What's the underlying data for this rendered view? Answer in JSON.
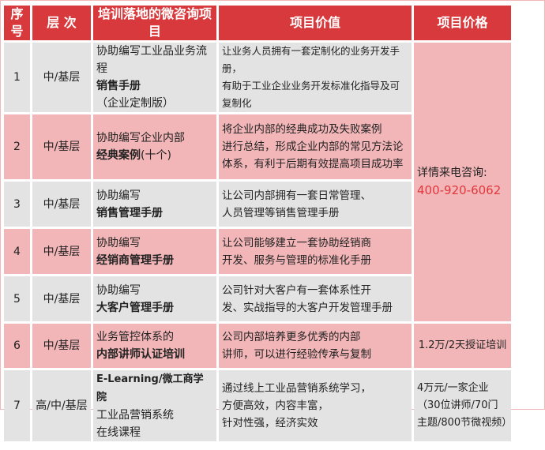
{
  "headers": [
    "序号",
    "层 次",
    "培训落地的微咨询项目",
    "项目价值",
    "项目价格"
  ],
  "rows": [
    {
      "no": "1",
      "level": "中/基层",
      "project_plain": "协助编写工业品业务流程",
      "project_bold": "销售手册",
      "project_tail": "（企业定制版）",
      "value": [
        "让业务人员拥有一套定制化的业务开发手册，",
        "有助于工业企业业务开发标准化指导及可复制化"
      ]
    },
    {
      "no": "2",
      "level": "中/基层",
      "project_plain": "协助编写企业内部",
      "project_bold": "经典案例",
      "project_tail": "(十个)",
      "value": [
        "将企业内部的经典成功及失败案例",
        "进行总结，形成企业内部的常见方法论",
        "体系，有利于后期有效提高项目成功率"
      ]
    },
    {
      "no": "3",
      "level": "中/基层",
      "project_plain": "协助编写",
      "project_bold": "销售管理手册",
      "project_tail": "",
      "value": [
        "让公司内部拥有一套日常管理、",
        "人员管理等销售管理手册"
      ]
    },
    {
      "no": "4",
      "level": "中/基层",
      "project_plain": "协助编写",
      "project_bold": "经销商管理手册",
      "project_tail": "",
      "value": [
        "让公司能够建立一套协助经销商",
        "开发、服务与管理的标准化手册"
      ]
    },
    {
      "no": "5",
      "level": "中/基层",
      "project_plain": "协助编写",
      "project_bold": "大客户管理手册",
      "project_tail": "",
      "value": [
        "公司针对大客户有一套体系性开",
        "发、实战指导的大客户开发管理手册"
      ]
    },
    {
      "no": "6",
      "level": "中/基层",
      "project_plain": "业务管控体系的",
      "project_bold": "内部讲师认证培训",
      "project_tail": "",
      "value": [
        "公司内部培养更多优秀的内部",
        "讲师，可以进行经验传承与复制"
      ],
      "price": "1.2万/2天授证培训"
    },
    {
      "no": "7",
      "level": "高/中/基层",
      "project_bold_first": "E-Learning/微工商学院",
      "project_lines": [
        "工业品营销系统",
        "在线课程"
      ],
      "value": [
        "通过线上工业品营销系统学习，",
        "方便高效，内容丰富，",
        "针对性强，经济实效"
      ],
      "price_lines": [
        "4万元/一家企业",
        "（30位讲师/70门",
        "主题/800节微视频）"
      ]
    }
  ],
  "merged_price": {
    "label": "详情来电咨询:",
    "phone": "400-920-6062"
  },
  "colors": {
    "header": "#d8393c",
    "pink": "#f2b6b8",
    "gray": "#e3e3e3",
    "phone": "#e0383c"
  }
}
